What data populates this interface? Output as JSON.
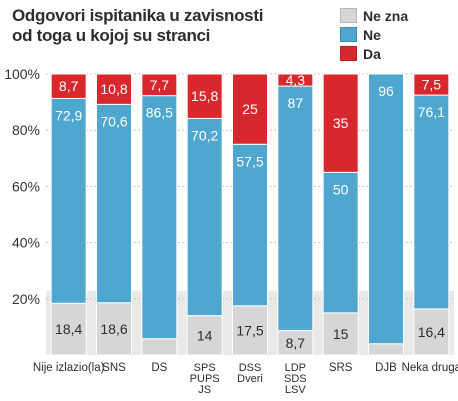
{
  "chart_data": {
    "type": "bar",
    "stacked": true,
    "title_lines": [
      "Odgovori ispitanika u zavisnosti",
      "od toga u kojoj su stranci"
    ],
    "categories": [
      "Nije izlazio(la)",
      "SNS",
      "DS",
      "SPS PUPS JS",
      "DSS Dveri",
      "LDP SDS LSV",
      "SRS",
      "DJB",
      "Neka druga"
    ],
    "category_lines": [
      [
        "Nije izlazio(la)"
      ],
      [
        "SNS"
      ],
      [
        "DS"
      ],
      [
        "SPS",
        "PUPS",
        "JS"
      ],
      [
        "DSS",
        "Dveri"
      ],
      [
        "LDP",
        "SDS",
        "LSV"
      ],
      [
        "SRS"
      ],
      [
        "DJB"
      ],
      [
        "Neka druga"
      ]
    ],
    "series": [
      {
        "name": "Ne zna",
        "color": "#d6d6d6",
        "values": [
          18.4,
          18.6,
          5.8,
          14,
          17.5,
          8.7,
          15,
          4,
          16.4
        ],
        "labels": [
          "18,4",
          "18,6",
          "5,8",
          "14",
          "17,5",
          "8,7",
          "15",
          "4",
          "16,4"
        ]
      },
      {
        "name": "Ne",
        "color": "#4fa6cf",
        "values": [
          72.9,
          70.6,
          86.5,
          70.2,
          57.5,
          87,
          50,
          96,
          76.1
        ],
        "labels": [
          "72,9",
          "70,6",
          "86,5",
          "70,2",
          "57,5",
          "87",
          "50",
          "96",
          "76,1"
        ]
      },
      {
        "name": "Da",
        "color": "#d9282d",
        "values": [
          8.7,
          10.8,
          7.7,
          15.8,
          25,
          4.3,
          35,
          0,
          7.5
        ],
        "labels": [
          "8,7",
          "10,8",
          "7,7",
          "15,8",
          "25",
          "4,3",
          "35",
          "",
          "7,5"
        ]
      }
    ],
    "legend_order": [
      "Ne zna",
      "Ne",
      "Da"
    ],
    "yticks": [
      20,
      40,
      60,
      80,
      100
    ],
    "ytick_labels": [
      "20%",
      "40%",
      "60%",
      "80%",
      "100%"
    ],
    "ylim": [
      0,
      100
    ],
    "grid": true,
    "legend_position": "top-right"
  }
}
